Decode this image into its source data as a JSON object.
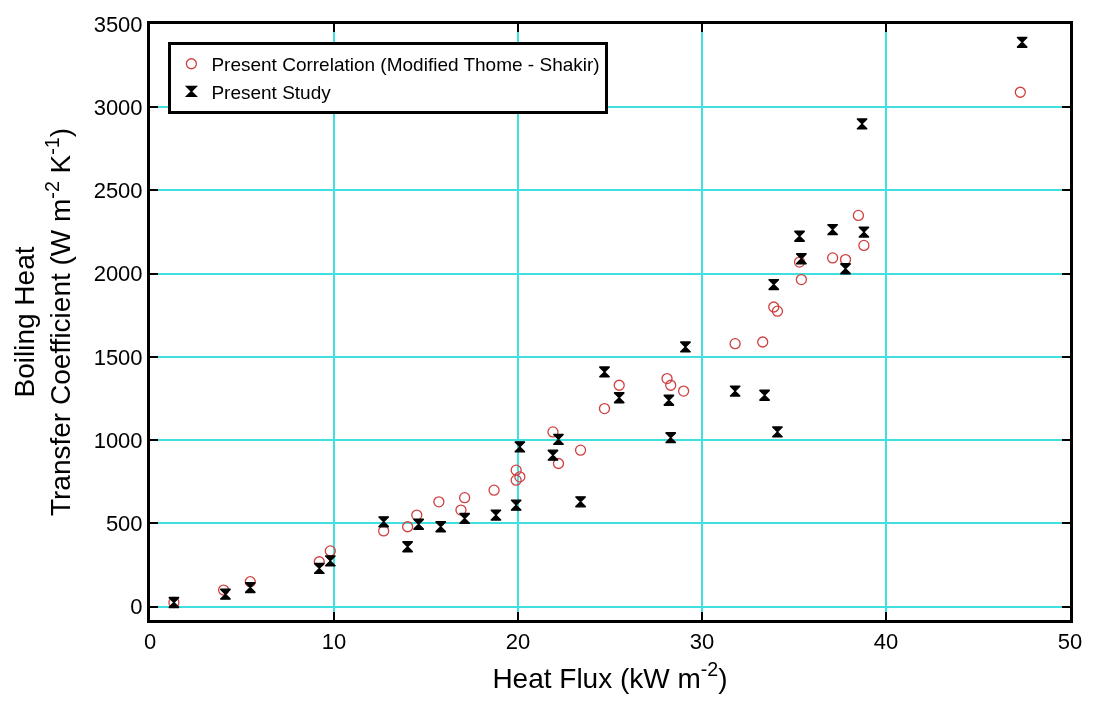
{
  "chart_data": {
    "type": "scatter",
    "xlabel": "Heat Flux (kW m$^{-2}$)",
    "ylabel": "Boiling Heat\nTransfer Coefficient (W m$^{-2}$ K$^{-1}$)",
    "xlim": [
      0,
      50
    ],
    "xticks": [
      0,
      10,
      20,
      30,
      40,
      50
    ],
    "ylim": [
      -80,
      3500
    ],
    "yticks": [
      0,
      500,
      1000,
      1500,
      2000,
      2500,
      3000,
      3500
    ],
    "grid": true,
    "legend": "top left",
    "series": [
      {
        "name": "Present Correlation (Modified Thome - Shakir)",
        "color": "#d04040",
        "x": [
          1.3,
          4.0,
          5.45,
          9.2,
          9.8,
          12.7,
          14.0,
          14.5,
          15.7,
          16.9,
          17.1,
          18.7,
          19.9,
          20.1,
          19.9,
          21.9,
          22.2,
          23.4,
          24.7,
          25.5,
          28.1,
          28.3,
          29.0,
          31.8,
          33.3,
          33.9,
          34.1,
          35.3,
          35.4,
          37.1,
          37.8,
          38.5,
          38.8,
          47.3
        ],
        "values": [
          25,
          100,
          150,
          270,
          335,
          455,
          480,
          550,
          630,
          580,
          655,
          700,
          820,
          780,
          760,
          1050,
          860,
          940,
          1190,
          1330,
          1370,
          1330,
          1295,
          1580,
          1590,
          1800,
          1775,
          2070,
          1965,
          2095,
          2085,
          2350,
          2170,
          3090
        ]
      },
      {
        "name": "Present Study",
        "color": "#000000",
        "x": [
          1.3,
          4.1,
          5.45,
          9.2,
          9.8,
          12.7,
          14.0,
          14.6,
          15.8,
          17.1,
          18.8,
          19.9,
          20.1,
          21.9,
          22.2,
          23.4,
          24.7,
          25.5,
          28.2,
          28.3,
          29.1,
          31.8,
          33.4,
          34.1,
          33.9,
          35.3,
          35.4,
          37.1,
          37.8,
          38.8,
          38.7,
          47.4
        ],
        "values": [
          25,
          75,
          115,
          230,
          275,
          510,
          360,
          495,
          480,
          530,
          550,
          610,
          960,
          910,
          1005,
          630,
          1410,
          1255,
          1240,
          1015,
          1560,
          1295,
          1270,
          1050,
          1935,
          2225,
          2090,
          2265,
          2030,
          2250,
          2900,
          3390
        ]
      }
    ]
  }
}
